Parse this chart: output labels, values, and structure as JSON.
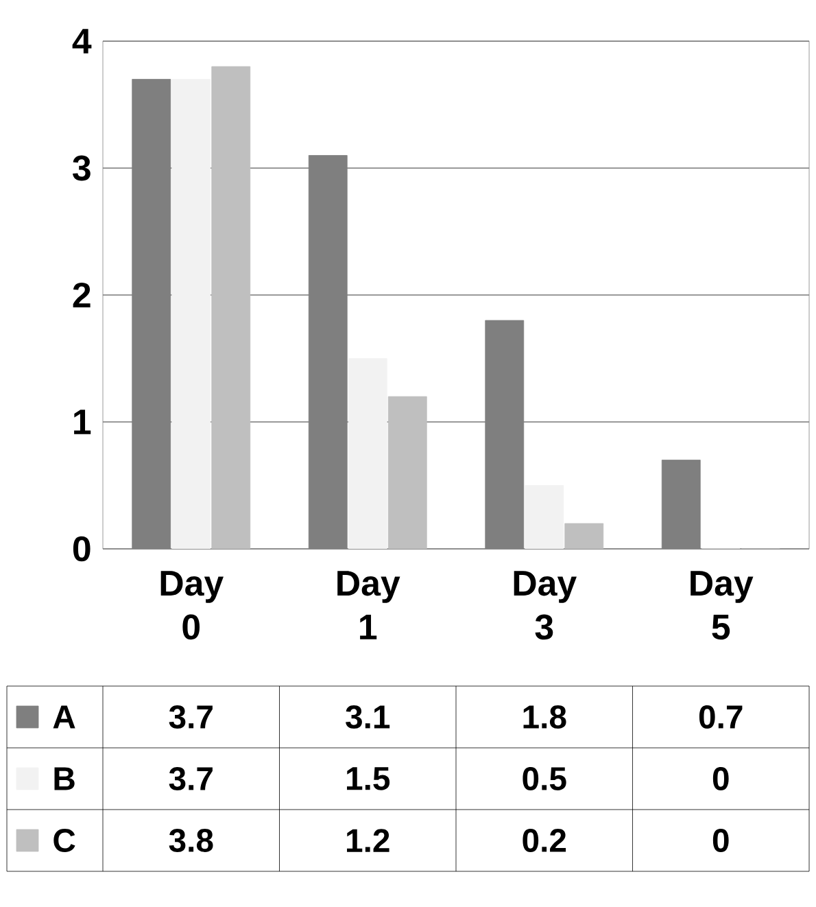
{
  "chart_data": {
    "type": "bar",
    "categories": [
      "Day 0",
      "Day 1",
      "Day 3",
      "Day 5"
    ],
    "series": [
      {
        "name": "A",
        "color": "#7f7f7f",
        "values": [
          3.7,
          3.1,
          1.8,
          0.7
        ]
      },
      {
        "name": "B",
        "color": "#f2f2f2",
        "values": [
          3.7,
          1.5,
          0.5,
          0
        ]
      },
      {
        "name": "C",
        "color": "#bfbfbf",
        "values": [
          3.8,
          1.2,
          0.2,
          0
        ]
      }
    ],
    "ylim": [
      0,
      4
    ],
    "yticks": [
      0,
      1,
      2,
      3,
      4
    ],
    "grid": "y",
    "legend": "bottom",
    "data_labels": true
  }
}
